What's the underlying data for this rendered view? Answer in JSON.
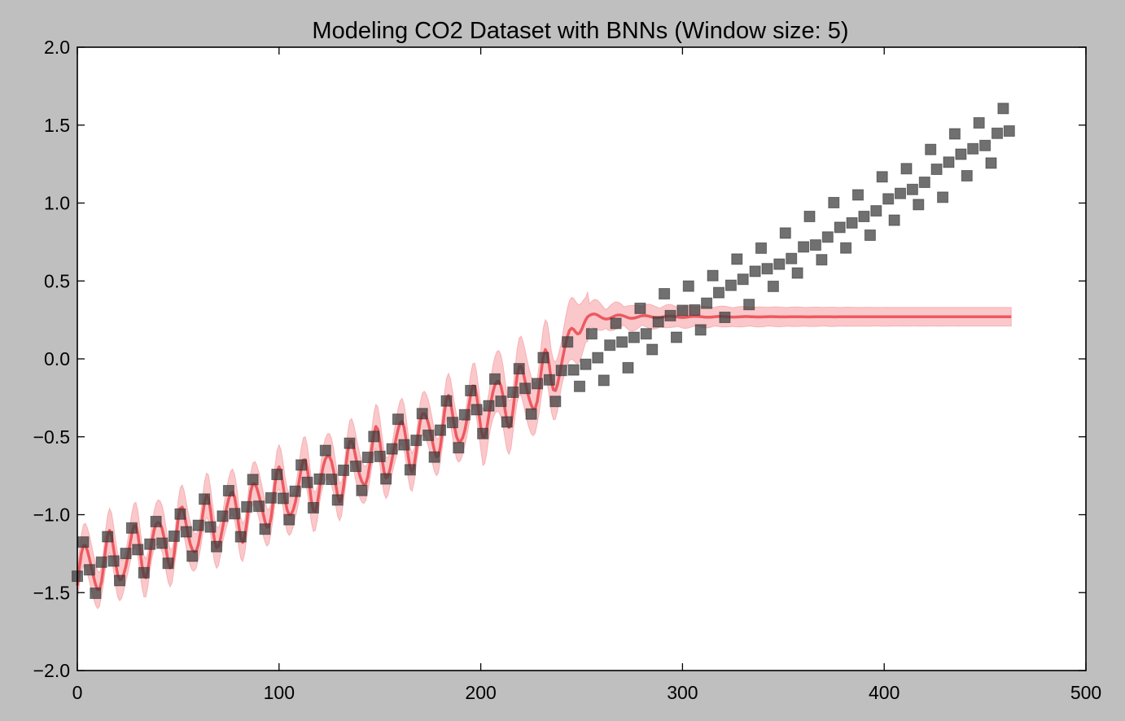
{
  "chart_data": {
    "type": "scatter",
    "title": "Modeling CO2 Dataset with BNNs (Window size: 5)",
    "xlabel": "",
    "ylabel": "",
    "xlim": [
      0,
      500
    ],
    "ylim": [
      -2.0,
      2.0
    ],
    "grid": false,
    "legend": "none",
    "x_ticks": [
      0,
      100,
      200,
      300,
      400,
      500
    ],
    "y_ticks": [
      -2.0,
      -1.5,
      -1.0,
      -0.5,
      0.0,
      0.5,
      1.0,
      1.5,
      2.0
    ],
    "x_tick_labels": [
      "0",
      "100",
      "200",
      "300",
      "400",
      "500"
    ],
    "y_tick_labels": [
      "−2.0",
      "−1.5",
      "−1.0",
      "−0.5",
      "0.0",
      "0.5",
      "1.0",
      "1.5",
      "2.0"
    ],
    "observed": {
      "marker": "square",
      "color": "#404040",
      "x_start": 0,
      "x_step": 3,
      "count": 155,
      "trend": {
        "base": -1.37,
        "linear": 0.00445,
        "quadratic": 3.7e-06
      },
      "seasonal": {
        "period": 12,
        "amplitude": 0.16
      },
      "approx_points": [
        [
          0,
          -1.37
        ],
        [
          50,
          -1.2
        ],
        [
          100,
          -0.92
        ],
        [
          150,
          -0.62
        ],
        [
          200,
          -0.4
        ],
        [
          250,
          -0.03
        ],
        [
          300,
          0.36
        ],
        [
          350,
          0.8
        ],
        [
          400,
          1.22
        ],
        [
          450,
          1.68
        ],
        [
          462,
          1.78
        ]
      ]
    },
    "prediction": {
      "color": "#e8343c",
      "band_color": "#f7a3a7",
      "fit_x_range": [
        0,
        253
      ],
      "extrapolation_x_range": [
        253,
        463
      ],
      "extrapolation_level": 0.27,
      "extrapolation_band": [
        0.21,
        0.33
      ]
    }
  }
}
